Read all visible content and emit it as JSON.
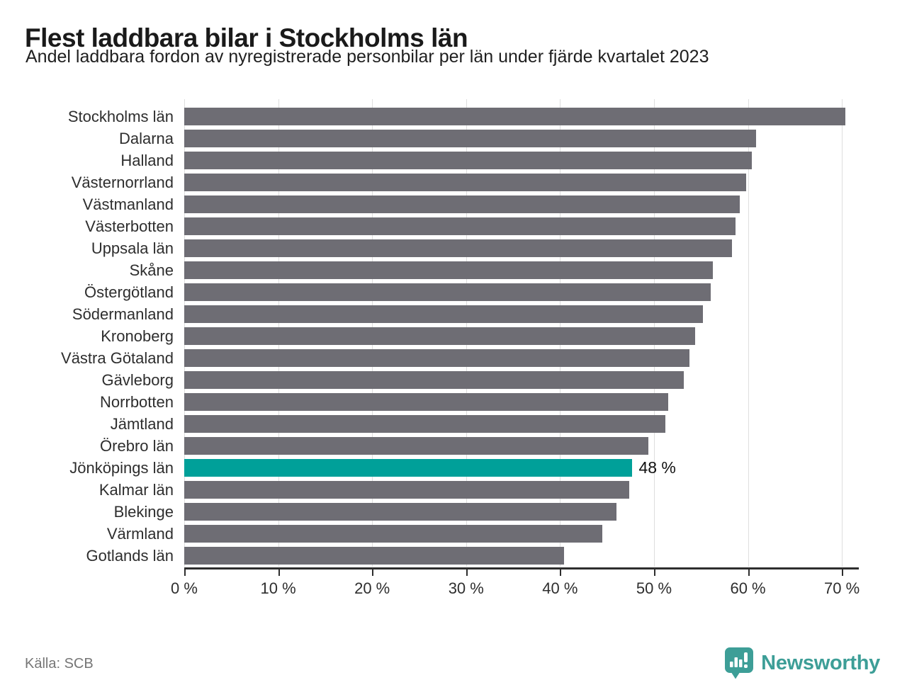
{
  "header": {
    "title": "Flest laddbara bilar i Stockholms län",
    "subtitle": "Andel laddbara fordon av nyregistrerade personbilar per län under fjärde kvartalet 2023"
  },
  "chart_data": {
    "type": "bar",
    "orientation": "horizontal",
    "title": "Flest laddbara bilar i Stockholms län",
    "subtitle": "Andel laddbara fordon av nyregistrerade personbilar per län under fjärde kvartalet 2023",
    "unit": "%",
    "categories": [
      "Stockholms län",
      "Dalarna",
      "Halland",
      "Västernorrland",
      "Västmanland",
      "Västerbotten",
      "Uppsala län",
      "Skåne",
      "Östergötland",
      "Södermanland",
      "Kronoberg",
      "Västra Götaland",
      "Gävleborg",
      "Norrbotten",
      "Jämtland",
      "Örebro län",
      "Jönköpings län",
      "Kalmar län",
      "Blekinge",
      "Värmland",
      "Gotlands län"
    ],
    "values": [
      70.4,
      60.9,
      60.4,
      59.8,
      59.1,
      58.7,
      58.3,
      56.3,
      56.0,
      55.2,
      54.4,
      53.8,
      53.2,
      51.5,
      51.2,
      49.4,
      47.7,
      47.4,
      46.0,
      44.5,
      40.4
    ],
    "highlight": {
      "category": "Jönköpings län",
      "index": 16,
      "label": "48 %"
    },
    "xlabel": "",
    "ylabel": "",
    "xlim": [
      0,
      70
    ],
    "x_tick_values": [
      0,
      10,
      20,
      30,
      40,
      50,
      60,
      70
    ],
    "x_tick_labels": [
      "0 %",
      "10 %",
      "20 %",
      "30 %",
      "40 %",
      "50 %",
      "60 %",
      "70 %"
    ],
    "grid": "vertical",
    "legend": "none",
    "bar_color": "#6e6d74",
    "highlight_color": "#00a099"
  },
  "footer": {
    "source": "Källa: SCB",
    "brand_name": "Newsworthy"
  },
  "colors": {
    "title": "#1a1a1a",
    "bar_gray": "#6e6d74",
    "accent_teal": "#00a099",
    "gridline": "#dedede",
    "axis": "#2e2e2e",
    "source_text": "#767676",
    "brand_teal": "#3d9e97"
  }
}
